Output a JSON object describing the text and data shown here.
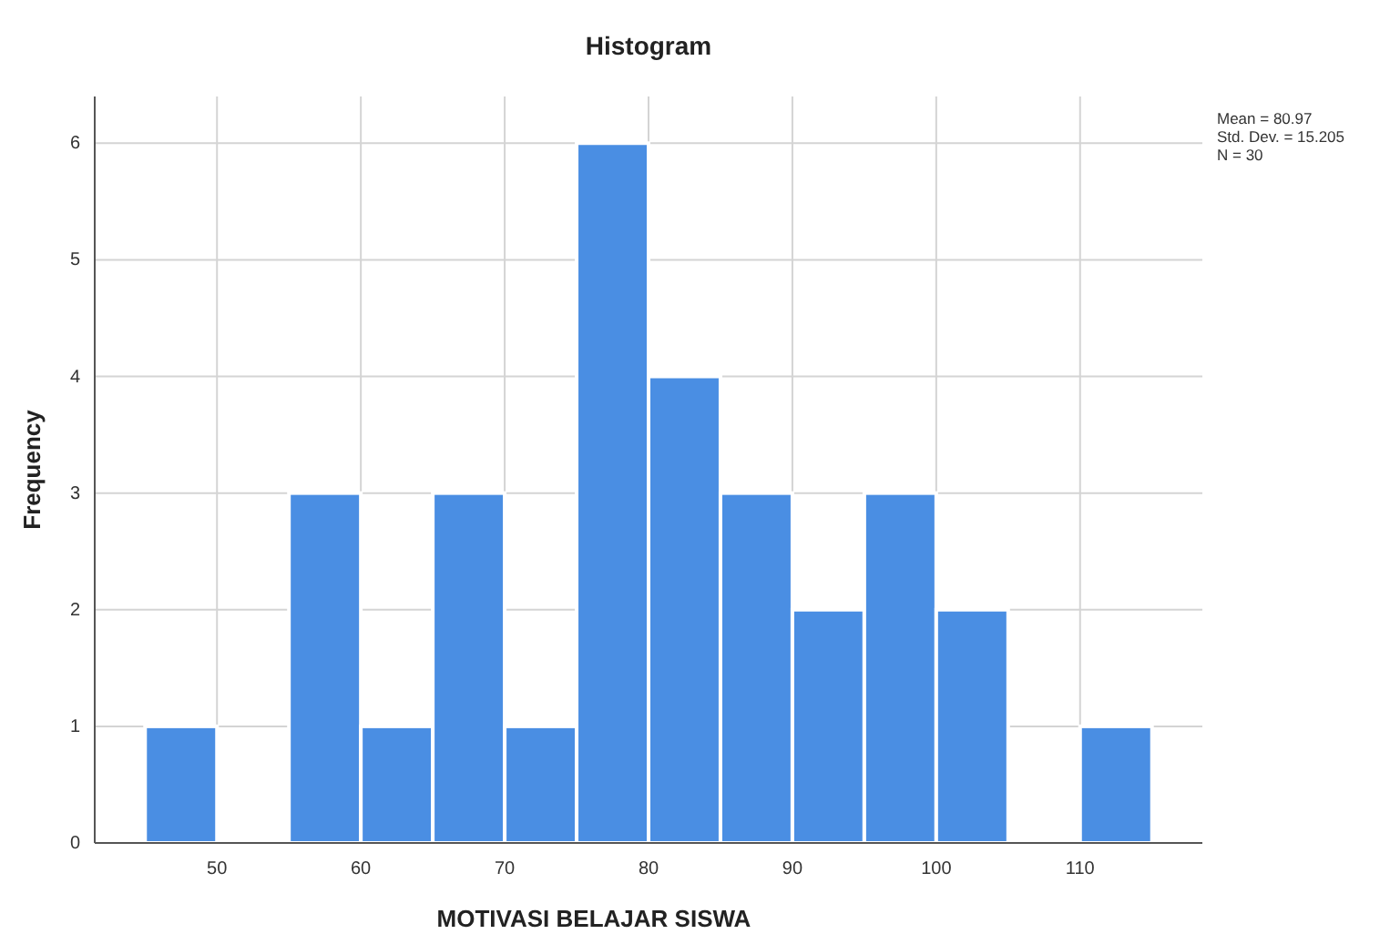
{
  "chart_data": {
    "type": "histogram",
    "title": "Histogram",
    "xlabel": "MOTIVASI BELAJAR SISWA",
    "ylabel": "Frequency",
    "bins": [
      45,
      50,
      55,
      60,
      65,
      70,
      75,
      80,
      85,
      90,
      95,
      100,
      105,
      110,
      115
    ],
    "values": [
      1,
      0,
      3,
      1,
      3,
      1,
      6,
      4,
      3,
      2,
      3,
      2,
      0,
      1
    ],
    "color": "#4a8ee3",
    "xlim": [
      41.5,
      118.5
    ],
    "xticks": [
      50,
      60,
      70,
      80,
      90,
      100,
      110
    ],
    "ylim": [
      0,
      6.4
    ],
    "yticks": [
      0,
      1,
      2,
      3,
      4,
      5,
      6
    ],
    "grid": true,
    "annotations": [
      "Mean = 80.97",
      "Std. Dev. = 15.205",
      "N = 30"
    ]
  }
}
